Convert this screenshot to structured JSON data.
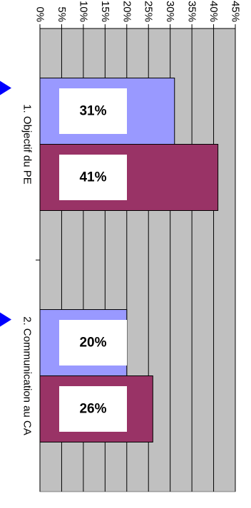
{
  "chart_data": {
    "type": "bar",
    "orientation": "horizontal",
    "categories": [
      "1. Objectif du PE",
      "2. Communication au CA"
    ],
    "series": [
      {
        "values": [
          31,
          20
        ],
        "color": "#9999ff"
      },
      {
        "values": [
          41,
          26
        ],
        "color": "#993366"
      }
    ],
    "data_labels": [
      [
        "31%",
        "20%"
      ],
      [
        "41%",
        "26%"
      ]
    ],
    "x_ticks": [
      "0%",
      "5%",
      "10%",
      "15%",
      "20%",
      "25%",
      "30%",
      "35%",
      "40%",
      "45%"
    ],
    "xlim": [
      0,
      45
    ],
    "grid": true,
    "plot_background": "#c0c0c0",
    "marker_color": "#0000ff",
    "legend": "none"
  }
}
